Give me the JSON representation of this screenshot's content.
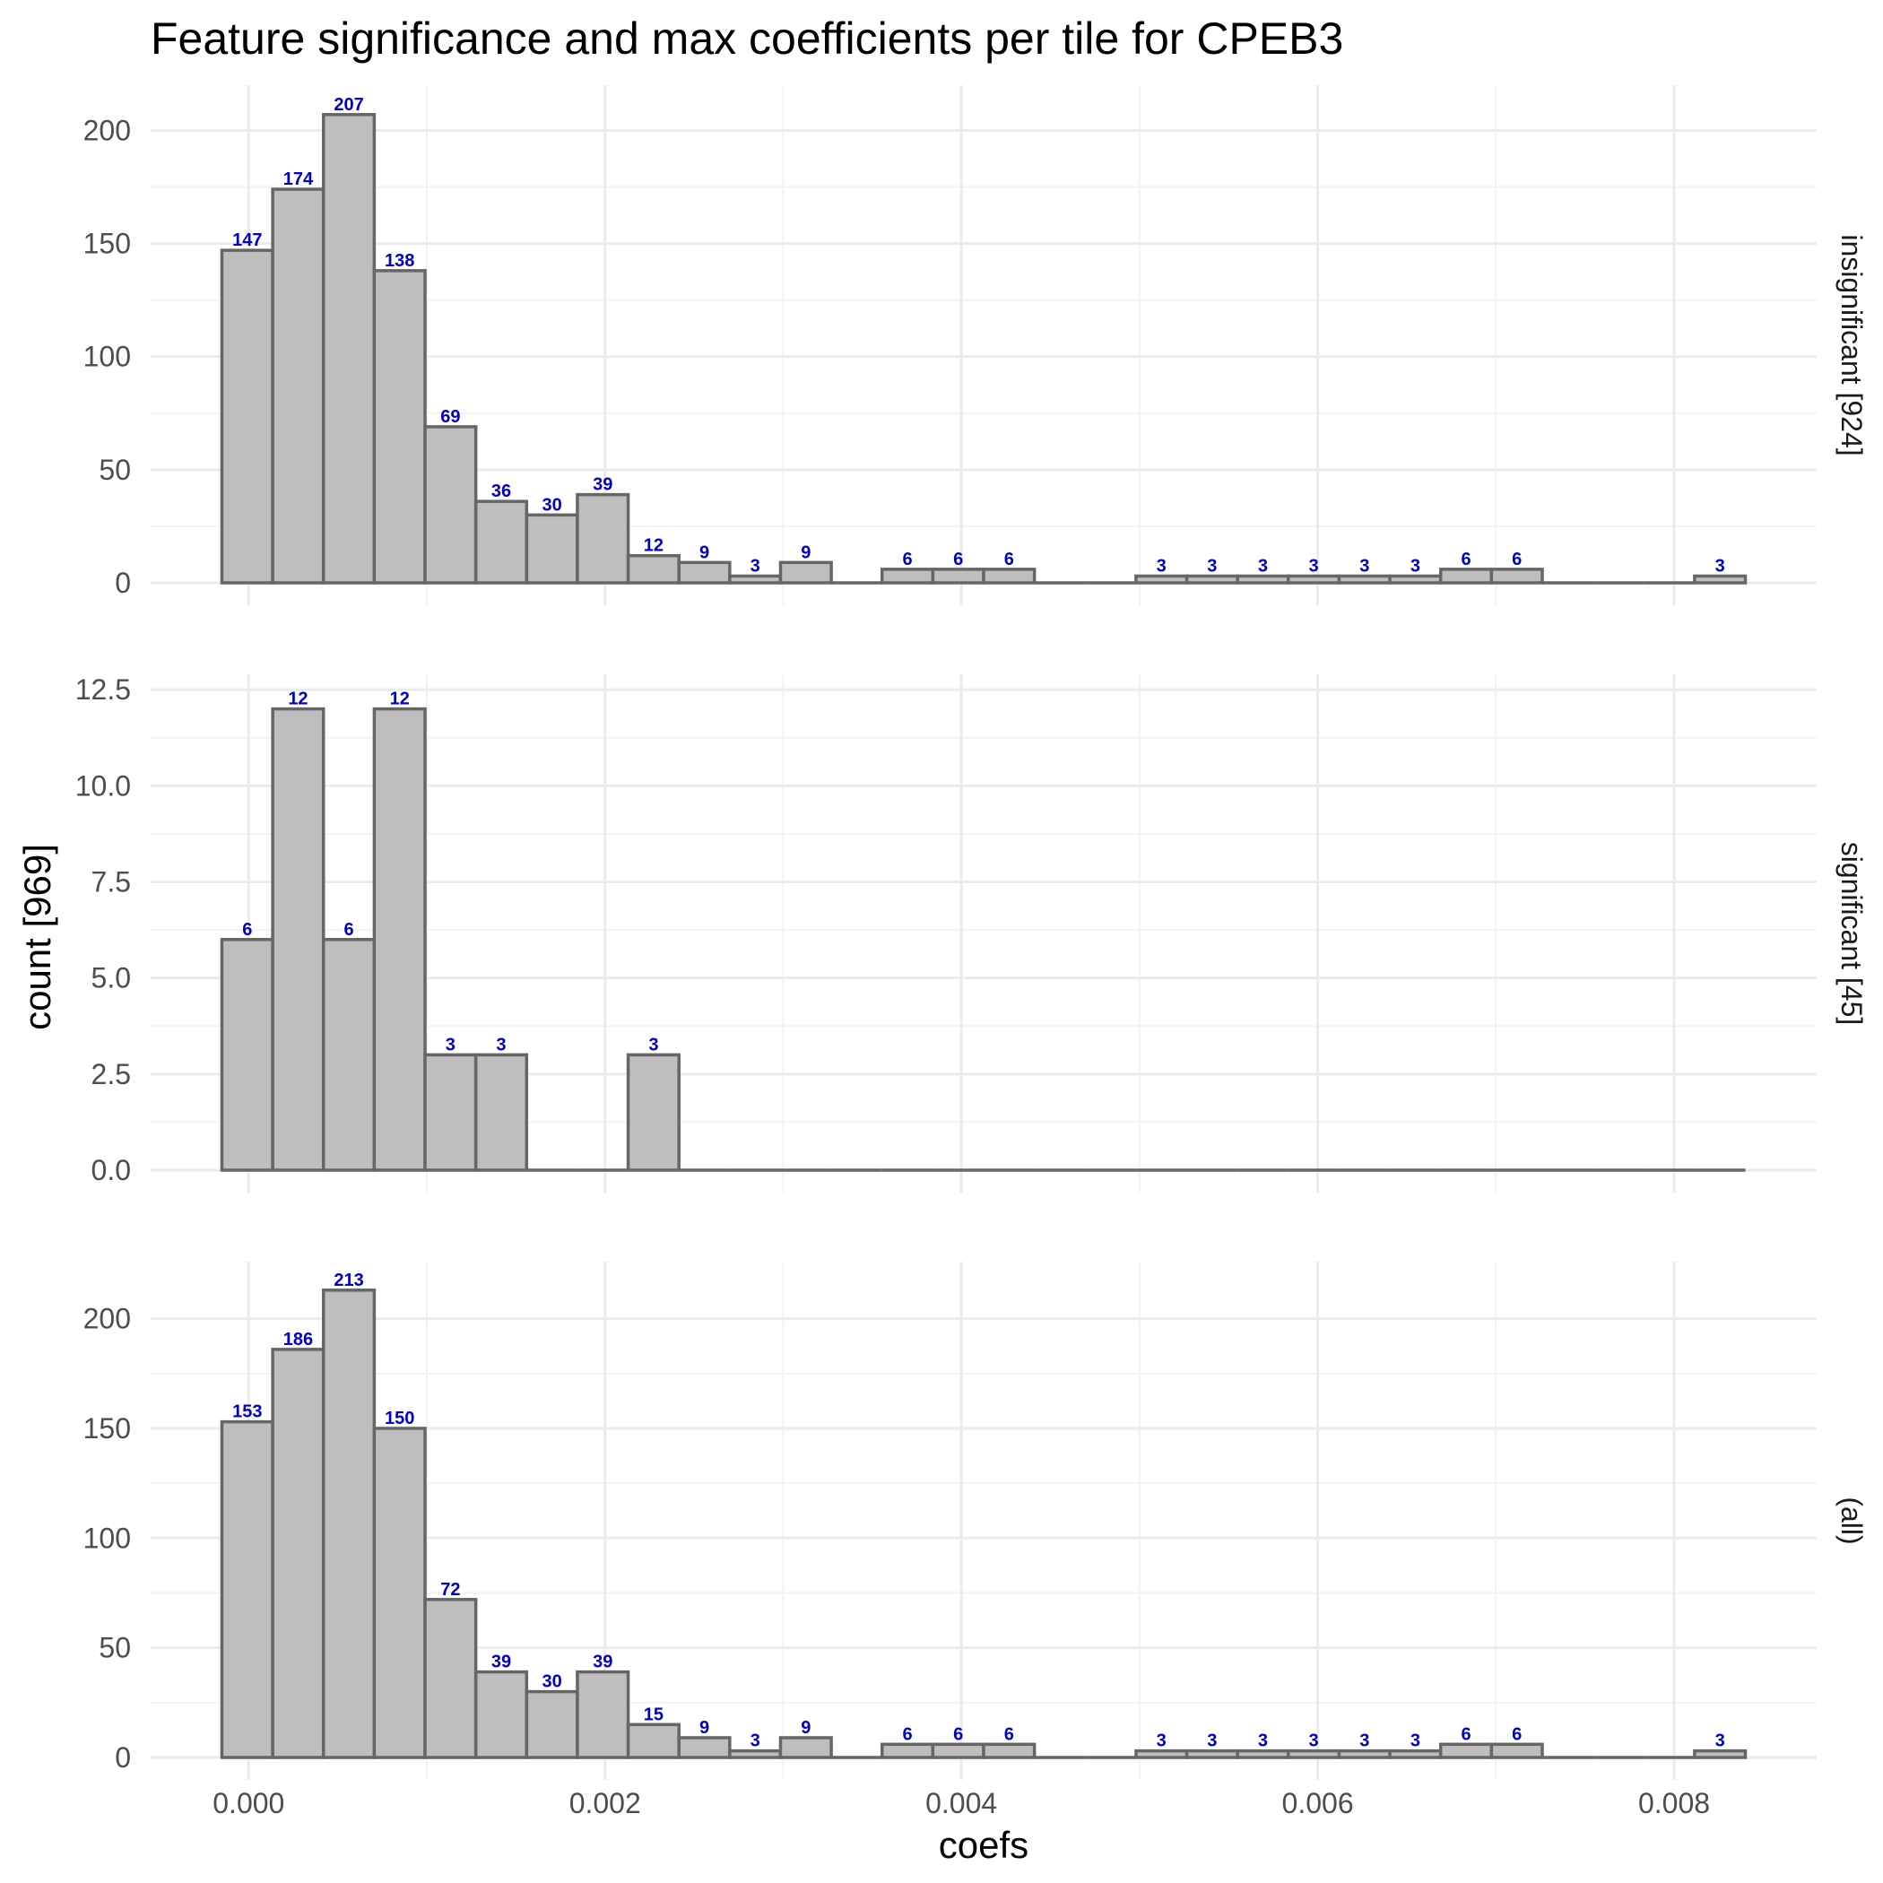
{
  "chart_data": {
    "type": "bar",
    "title": "Feature significance and max coefficients per tile for CPEB3",
    "xlabel": "coefs",
    "ylabel": "count [969]",
    "xlim": [
      -0.00055,
      0.0088
    ],
    "x_ticks": [
      0.0,
      0.002,
      0.004,
      0.006,
      0.008
    ],
    "x_tick_labels": [
      "0.000",
      "0.002",
      "0.004",
      "0.006",
      "0.008"
    ],
    "bin_width": 0.000285,
    "bin_start": -0.00015,
    "bin_count": 30,
    "grid": true,
    "bar_fill": "#bebebe",
    "bar_outline": "#666666",
    "label_color": "#0000cc",
    "panels": [
      {
        "strip": "insignificant [924]",
        "ylim": [
          0,
          220
        ],
        "y_ticks": [
          0,
          50,
          100,
          150,
          200
        ],
        "y_tick_labels": [
          "0",
          "50",
          "100",
          "150",
          "200"
        ],
        "values": [
          147,
          174,
          207,
          138,
          69,
          36,
          30,
          39,
          12,
          9,
          3,
          9,
          0,
          6,
          6,
          6,
          0,
          0,
          3,
          3,
          3,
          3,
          3,
          3,
          6,
          6,
          0,
          0,
          0,
          3
        ],
        "labels": [
          "147",
          "174",
          "207",
          "138",
          "69",
          "36",
          "30",
          "39",
          "12",
          "9",
          "3",
          "9",
          "",
          "6",
          "6",
          "6",
          "",
          "",
          "3",
          "3",
          "3",
          "3",
          "3",
          "3",
          "6",
          "6",
          "",
          "",
          "",
          "3"
        ]
      },
      {
        "strip": "significant [45]",
        "ylim": [
          0,
          12.9
        ],
        "y_ticks": [
          0,
          2.5,
          5,
          7.5,
          10,
          12.5
        ],
        "y_tick_labels": [
          "0.0",
          "2.5",
          "5.0",
          "7.5",
          "10.0",
          "12.5"
        ],
        "values": [
          6,
          12,
          6,
          12,
          3,
          3,
          0,
          0,
          3,
          0,
          0,
          0,
          0,
          0,
          0,
          0,
          0,
          0,
          0,
          0,
          0,
          0,
          0,
          0,
          0,
          0,
          0,
          0,
          0,
          0
        ],
        "labels": [
          "6",
          "12",
          "6",
          "12",
          "3",
          "3",
          "",
          "",
          "3",
          "",
          "",
          "",
          "",
          "",
          "",
          "",
          "",
          "",
          "",
          "",
          "",
          "",
          "",
          "",
          "",
          "",
          "",
          "",
          "",
          ""
        ]
      },
      {
        "strip": "(all)",
        "ylim": [
          0,
          226
        ],
        "y_ticks": [
          0,
          50,
          100,
          150,
          200
        ],
        "y_tick_labels": [
          "0",
          "50",
          "100",
          "150",
          "200"
        ],
        "values": [
          153,
          186,
          213,
          150,
          72,
          39,
          30,
          39,
          15,
          9,
          3,
          9,
          0,
          6,
          6,
          6,
          0,
          0,
          3,
          3,
          3,
          3,
          3,
          3,
          6,
          6,
          0,
          0,
          0,
          3
        ],
        "labels": [
          "153",
          "186",
          "213",
          "150",
          "72",
          "39",
          "30",
          "39",
          "15",
          "9",
          "3",
          "9",
          "",
          "6",
          "6",
          "6",
          "",
          "",
          "3",
          "3",
          "3",
          "3",
          "3",
          "3",
          "6",
          "6",
          "",
          "",
          "",
          "3"
        ]
      }
    ]
  }
}
